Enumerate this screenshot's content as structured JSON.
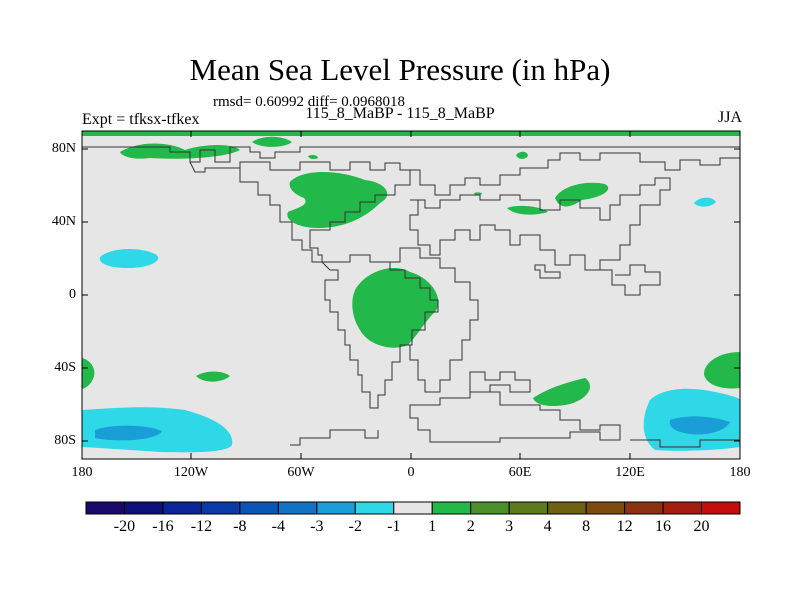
{
  "header": {
    "title": "Mean Sea Level Pressure (in hPa)",
    "stats": "rmsd= 0.60992 diff= 0.0968018",
    "experiment": "Expt = tfksx-tfkex",
    "comparison": "115_8_MaBP - 115_8_MaBP",
    "season": "JJA"
  },
  "axes": {
    "lat_ticks": [
      "80N",
      "40N",
      "0",
      "40S",
      "80S"
    ],
    "lon_ticks": [
      "180",
      "120W",
      "60W",
      "0",
      "60E",
      "120E",
      "180"
    ]
  },
  "colorbar": {
    "labels": [
      "-20",
      "-16",
      "-12",
      "-8",
      "-4",
      "-3",
      "-2",
      "-1",
      "1",
      "2",
      "3",
      "4",
      "8",
      "12",
      "16",
      "20"
    ],
    "colors": [
      "#1a0a6b",
      "#10107a",
      "#0b2497",
      "#0a3aa8",
      "#0a55b5",
      "#1273c2",
      "#1a9ed8",
      "#2fd8e6",
      "#e6e6e6",
      "#22b84a",
      "#4a8f2a",
      "#5f7a1c",
      "#6e6212",
      "#7f4a0e",
      "#8d3210",
      "#a21d10",
      "#c40e0e"
    ]
  },
  "legend_colors": {
    "background": "#e6e6e6",
    "positive_1_2": "#22b84a",
    "negative_m2_m1": "#2fd8e6",
    "negative_m3_m2": "#1a9ed8"
  }
}
